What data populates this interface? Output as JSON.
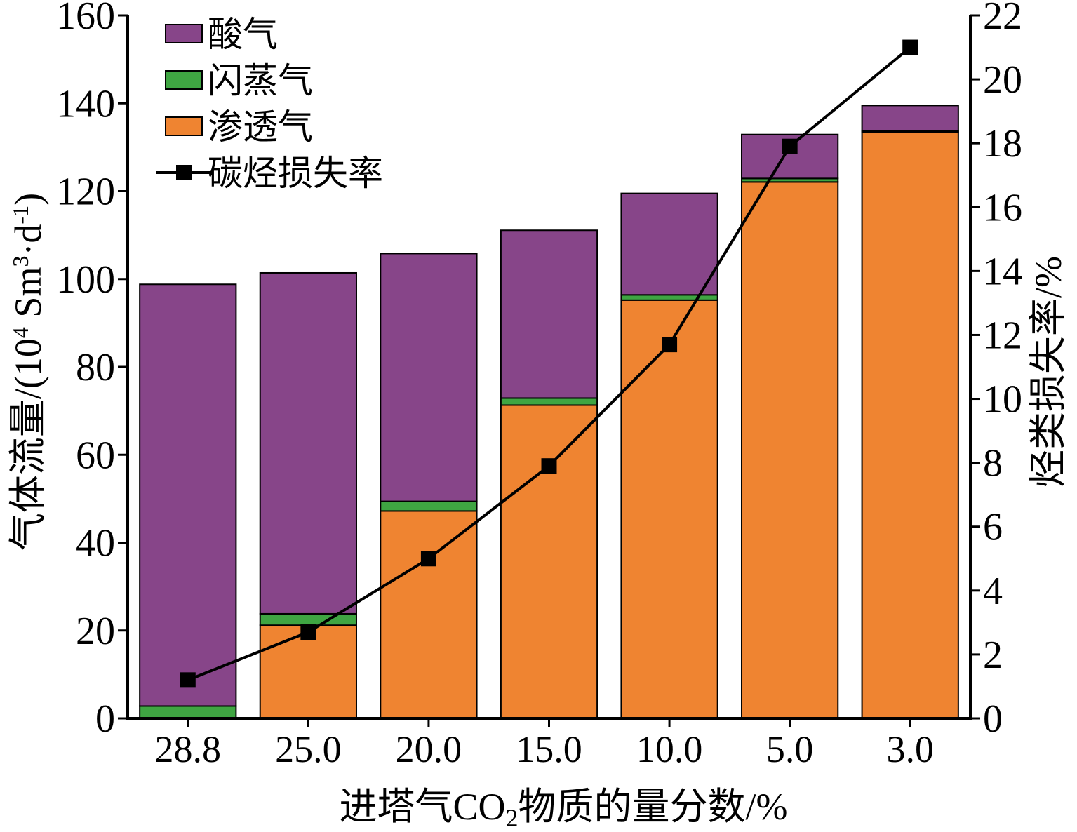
{
  "chart_data": {
    "type": "bar",
    "stacked": true,
    "categories": [
      "28.8",
      "25.0",
      "20.0",
      "15.0",
      "10.0",
      "5.0",
      "3.0"
    ],
    "series": [
      {
        "name": "渗透气",
        "type": "bar",
        "axis": "left",
        "color": "#EF8431",
        "values": [
          0,
          21.2,
          47.2,
          71.3,
          95.2,
          122.1,
          133.4
        ]
      },
      {
        "name": "闪蒸气",
        "type": "bar",
        "axis": "left",
        "color": "#3FA542",
        "values": [
          2.8,
          2.6,
          2.2,
          1.6,
          1.2,
          0.8,
          0.3
        ]
      },
      {
        "name": "酸气",
        "type": "bar",
        "axis": "left",
        "color": "#874589",
        "values": [
          96.0,
          77.6,
          56.4,
          38.2,
          23.1,
          10.0,
          5.8
        ]
      },
      {
        "name": "碳烃损失率",
        "type": "line",
        "axis": "right",
        "color": "#000000",
        "marker": "square",
        "values": [
          1.2,
          2.7,
          5.0,
          7.9,
          11.7,
          17.9,
          21.0
        ]
      }
    ],
    "y_left": {
      "label_main": "气体流量/(10",
      "label_sup1": "4",
      "label_mid": " Sm",
      "label_sup2": "3",
      "label_mid2": "·d",
      "label_sup3": "-1",
      "label_end": ")",
      "lim": [
        0,
        160
      ],
      "ticks": [
        "0",
        "20",
        "40",
        "60",
        "80",
        "100",
        "120",
        "140",
        "160"
      ]
    },
    "y_right": {
      "label": "烃类损失率/%",
      "lim": [
        0,
        22
      ],
      "ticks": [
        "0",
        "2",
        "4",
        "6",
        "8",
        "10",
        "12",
        "14",
        "16",
        "18",
        "20",
        "22"
      ]
    },
    "x_axis": {
      "label_pre": "进塔气CO",
      "label_sub": "2",
      "label_post": "物质的量分数/%"
    },
    "legend": {
      "placement": "top-left",
      "items": [
        {
          "label": "酸气",
          "color": "#874589",
          "kind": "patch"
        },
        {
          "label": "闪蒸气",
          "color": "#3FA542",
          "kind": "patch"
        },
        {
          "label": "渗透气",
          "color": "#EF8431",
          "kind": "patch"
        },
        {
          "label": "碳烃损失率",
          "color": "#000000",
          "kind": "line-marker"
        }
      ]
    },
    "grid": false
  }
}
